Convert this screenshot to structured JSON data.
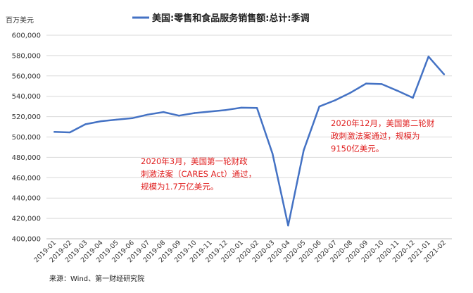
{
  "chart_data": {
    "type": "line",
    "ylabel": "百万美元",
    "ylim": [
      400000,
      600000
    ],
    "y_ticks": [
      "400,000",
      "420,000",
      "440,000",
      "460,000",
      "480,000",
      "500,000",
      "520,000",
      "540,000",
      "560,000",
      "580,000",
      "600,000"
    ],
    "categories": [
      "2019-01",
      "2019-02",
      "2019-03",
      "2019-04",
      "2019-05",
      "2019-06",
      "2019-07",
      "2019-08",
      "2019-09",
      "2019-10",
      "2019-11",
      "2019-12",
      "2020-01",
      "2020-02",
      "2020-03",
      "2020-04",
      "2020-05",
      "2020-06",
      "2020-07",
      "2020-08",
      "2020-09",
      "2020-10",
      "2020-11",
      "2020-12",
      "2021-01",
      "2021-02"
    ],
    "series": [
      {
        "name": "美国:零售和食品服务销售额:总计:季调",
        "color": "#4472c4",
        "values": [
          505000,
          504500,
          512500,
          515500,
          517000,
          518500,
          522000,
          524500,
          521000,
          523500,
          525000,
          526500,
          528800,
          528500,
          483500,
          413000,
          487000,
          530000,
          536000,
          543500,
          552500,
          552000,
          545500,
          538500,
          579000,
          561500
        ]
      }
    ],
    "annotations": [
      {
        "lines": [
          "2020年3月，美国第一轮财政",
          "刺激法案（CARES Act）通过，",
          "规模为1.7万亿美元。"
        ],
        "color": "#e02020"
      },
      {
        "lines": [
          "2020年12月，美国第二轮财",
          "政刺激法案通过，规模为",
          "9150亿美元。"
        ],
        "color": "#e02020"
      }
    ],
    "grid": true,
    "legend": "top-center",
    "source": "来源：Wind、第一财经研究院"
  }
}
